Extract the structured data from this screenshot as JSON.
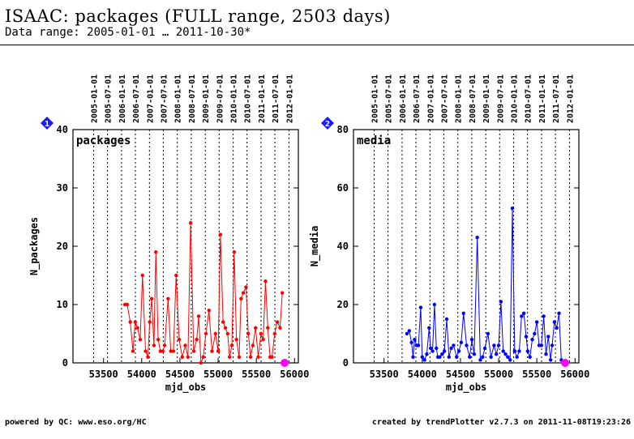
{
  "title": "ISAAC: packages (FULL range, 2503 days)",
  "subtitle": "Data range: 2005-01-01 … 2011-10-30*",
  "footer_left": "powered by QC: www.eso.org/HC",
  "footer_right": "created by trendPlotter v2.7.3 on 2011-11-08T19:23:26",
  "colors": {
    "packages": "#ff0000",
    "media": "#0000ff",
    "marker": "#ff00ff",
    "badge": "#1a1aff"
  },
  "chart_data": [
    {
      "type": "line",
      "badge": "1",
      "label": "packages",
      "xlabel": "mjd_obs",
      "ylabel": "N_packages",
      "xlim": [
        53100,
        56050
      ],
      "ylim": [
        0,
        40
      ],
      "x_ticks": [
        53500,
        54000,
        54500,
        55000,
        55500,
        56000
      ],
      "y_ticks": [
        0,
        10,
        20,
        30,
        40
      ],
      "date_ticks": [
        {
          "label": "2005-01-01",
          "mjd": 53371
        },
        {
          "label": "2005-07-01",
          "mjd": 53552
        },
        {
          "label": "2006-01-01",
          "mjd": 53736
        },
        {
          "label": "2006-07-01",
          "mjd": 53917
        },
        {
          "label": "2007-01-01",
          "mjd": 54101
        },
        {
          "label": "2007-07-01",
          "mjd": 54282
        },
        {
          "label": "2008-01-01",
          "mjd": 54466
        },
        {
          "label": "2008-07-01",
          "mjd": 54648
        },
        {
          "label": "2009-01-01",
          "mjd": 54832
        },
        {
          "label": "2009-07-01",
          "mjd": 55013
        },
        {
          "label": "2010-01-01",
          "mjd": 55197
        },
        {
          "label": "2010-07-01",
          "mjd": 55378
        },
        {
          "label": "2011-01-01",
          "mjd": 55562
        },
        {
          "label": "2011-07-01",
          "mjd": 55743
        },
        {
          "label": "2012-01-01",
          "mjd": 55927
        }
      ],
      "series": [
        {
          "x": [
            53780,
            53810,
            53850,
            53885,
            53915,
            53945,
            53980,
            54010,
            54050,
            54080,
            54105,
            54130,
            54160,
            54185,
            54215,
            54245,
            54275,
            54300,
            54345,
            54380,
            54415,
            54450,
            54490,
            54530,
            54570,
            54605,
            54640,
            54680,
            54720,
            54745,
            54775,
            54805,
            54840,
            54880,
            54920,
            54965,
            55000,
            55030,
            55065,
            55095,
            55125,
            55150,
            55180,
            55210,
            55240,
            55275,
            55300,
            55330,
            55365,
            55395,
            55425,
            55455,
            55490,
            55525,
            55560,
            55590,
            55620,
            55650,
            55680,
            55705,
            55740,
            55775,
            55810,
            55840
          ],
          "y": [
            10,
            10,
            7,
            2,
            7,
            6,
            4,
            15,
            2,
            1,
            7,
            11,
            3,
            19,
            4,
            2,
            2,
            3,
            11,
            2,
            2,
            15,
            4,
            1,
            3,
            1,
            24,
            2,
            4,
            8,
            0,
            1,
            5,
            9,
            2,
            5,
            2,
            22,
            7,
            6,
            5,
            1,
            3,
            19,
            4,
            1,
            11,
            12,
            13,
            5,
            1,
            3,
            6,
            1,
            5,
            4,
            14,
            6,
            1,
            1,
            5,
            7,
            6,
            12
          ],
          "color": "#ff0000"
        }
      ],
      "markers": [
        {
          "x": 55870,
          "y": 0
        }
      ]
    },
    {
      "type": "line",
      "badge": "2",
      "label": "media",
      "xlabel": "mjd_obs",
      "ylabel": "N_media",
      "xlim": [
        53100,
        56050
      ],
      "ylim": [
        0,
        80
      ],
      "x_ticks": [
        53500,
        54000,
        54500,
        55000,
        55500,
        56000
      ],
      "y_ticks": [
        0,
        20,
        40,
        60,
        80
      ],
      "date_ticks": [
        {
          "label": "2005-01-01",
          "mjd": 53371
        },
        {
          "label": "2005-07-01",
          "mjd": 53552
        },
        {
          "label": "2006-01-01",
          "mjd": 53736
        },
        {
          "label": "2006-07-01",
          "mjd": 53917
        },
        {
          "label": "2007-01-01",
          "mjd": 54101
        },
        {
          "label": "2007-07-01",
          "mjd": 54282
        },
        {
          "label": "2008-01-01",
          "mjd": 54466
        },
        {
          "label": "2008-07-01",
          "mjd": 54648
        },
        {
          "label": "2009-01-01",
          "mjd": 54832
        },
        {
          "label": "2009-07-01",
          "mjd": 55013
        },
        {
          "label": "2010-01-01",
          "mjd": 55197
        },
        {
          "label": "2010-07-01",
          "mjd": 55378
        },
        {
          "label": "2011-01-01",
          "mjd": 55562
        },
        {
          "label": "2011-07-01",
          "mjd": 55743
        },
        {
          "label": "2012-01-01",
          "mjd": 55927
        }
      ],
      "series": [
        {
          "x": [
            53800,
            53830,
            53860,
            53880,
            53900,
            53925,
            53950,
            53980,
            54000,
            54030,
            54060,
            54090,
            54110,
            54135,
            54160,
            54185,
            54205,
            54230,
            54260,
            54290,
            54320,
            54350,
            54380,
            54410,
            54450,
            54480,
            54510,
            54540,
            54580,
            54620,
            54650,
            54680,
            54720,
            54760,
            54790,
            54820,
            54860,
            54900,
            54940,
            54970,
            55000,
            55030,
            55060,
            55090,
            55120,
            55150,
            55180,
            55210,
            55240,
            55270,
            55300,
            55330,
            55360,
            55380,
            55410,
            55440,
            55470,
            55500,
            55530,
            55560,
            55590,
            55620,
            55650,
            55680,
            55700,
            55730,
            55760,
            55790,
            55820,
            55850
          ],
          "y": [
            10,
            11,
            7,
            2,
            8,
            6,
            6,
            19,
            2,
            1,
            3,
            12,
            5,
            4,
            20,
            5,
            2,
            2,
            3,
            4,
            15,
            2,
            5,
            6,
            2,
            4,
            7,
            17,
            6,
            2,
            8,
            3,
            43,
            1,
            2,
            5,
            10,
            2,
            6,
            3,
            6,
            21,
            4,
            3,
            2,
            1,
            53,
            4,
            2,
            4,
            16,
            17,
            9,
            4,
            2,
            8,
            10,
            14,
            6,
            6,
            16,
            3,
            9,
            1,
            6,
            14,
            12,
            17,
            1,
            0
          ],
          "color": "#0000ff"
        }
      ],
      "markers": [
        {
          "x": 55870,
          "y": 0
        }
      ]
    }
  ]
}
